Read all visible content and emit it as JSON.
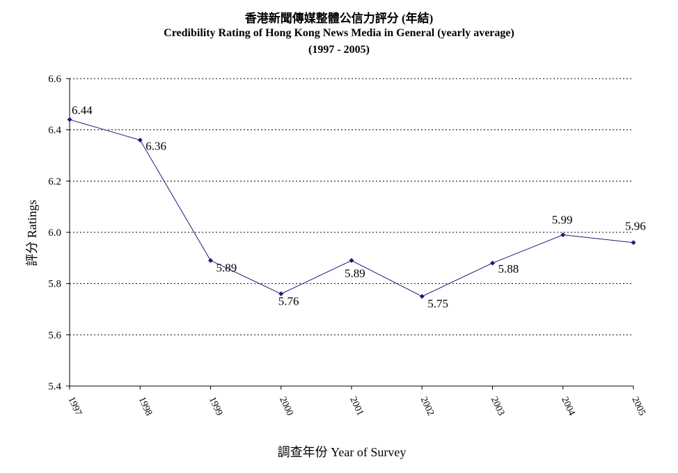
{
  "chart_data": {
    "type": "line",
    "title": "香港新聞傳媒整體公信力評分 (年結)",
    "subtitle": "Credibility Rating of Hong Kong News Media in General (yearly average)",
    "subtitle2": "(1997 - 2005)",
    "xlabel": "調查年份 Year of Survey",
    "ylabel": "評分 Ratings",
    "categories": [
      "1997",
      "1998",
      "1999",
      "2000",
      "2001",
      "2002",
      "2003",
      "2004",
      "2005"
    ],
    "values": [
      6.44,
      6.36,
      5.89,
      5.76,
      5.89,
      5.75,
      5.88,
      5.99,
      5.96
    ],
    "value_labels": [
      "6.44",
      "6.36",
      "5.89",
      "5.76",
      "5.89",
      "5.75",
      "5.88",
      "5.99",
      "5.96"
    ],
    "ylim": [
      5.4,
      6.6
    ],
    "yticks": [
      "5.4",
      "5.6",
      "5.8",
      "6.0",
      "6.2",
      "6.4",
      "6.6"
    ],
    "grid": true,
    "line_color": "#1a1a7a",
    "grid_style": "dotted"
  }
}
